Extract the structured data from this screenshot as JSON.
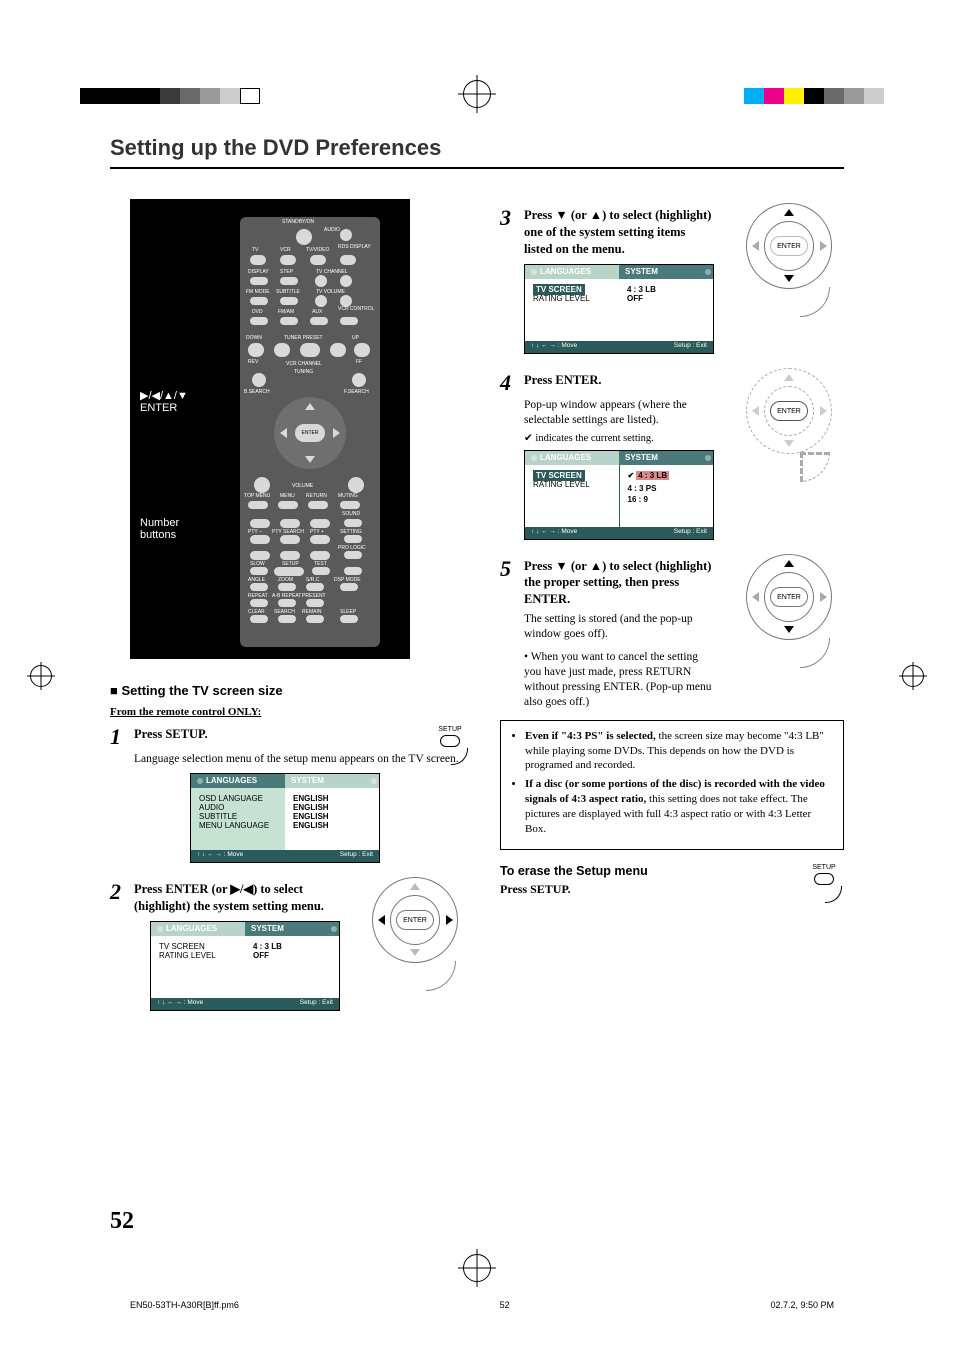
{
  "reg_colors_left": [
    "#000000",
    "#000000",
    "#000000",
    "#000000",
    "#3a3a3a",
    "#6a6a6a",
    "#9a9a9a",
    "#cccccc",
    "#ffffff"
  ],
  "reg_colors_right": [
    "#00aeef",
    "#ec008c",
    "#fff200",
    "#000000",
    "#6a6a6a",
    "#9a9a9a",
    "#cccccc"
  ],
  "title": "Setting up the DVD Preferences",
  "callouts": {
    "nav": "▶/◀/▲/▼",
    "enter": "ENTER",
    "number": "Number\nbuttons",
    "return": "RETURN",
    "setup": "SETUP"
  },
  "remote": {
    "top_label": "STANDBY/ON",
    "audio": "AUDIO",
    "row2": [
      "TV",
      "VCR",
      "TV/VIDEO",
      "RDS\nDISPLAY"
    ],
    "row3": [
      "DISPLAY",
      "STEP",
      "TV CHANNEL"
    ],
    "row4": [
      "FM MODE",
      "SUBTITLE",
      "TV VOLUME"
    ],
    "row5": [
      "DVD",
      "FM/AM",
      "AUX",
      "VCR\nCONTROL"
    ],
    "transport": {
      "down": "DOWN",
      "tuner": "TUNER PRESET",
      "up": "UP",
      "rev": "REV",
      "ff": "FF",
      "vcr": "VCR CHANNEL",
      "tuning": "TUNING",
      "bsearch": "B.SEARCH",
      "fsearch": "F.SEARCH"
    },
    "enter": "ENTER",
    "volume": "VOLUME",
    "menu_row": [
      "TOP MENU",
      "MENU",
      "RETURN",
      "MUTING"
    ],
    "num_side": [
      "SOUND",
      "SETTING",
      "PRO LOGIC"
    ],
    "pty": [
      "PTY –",
      "PTY SEARCH",
      "PTY +"
    ],
    "row_setup": [
      "SLOW",
      "SETUP",
      "TEST"
    ],
    "row_angle": [
      "ANGLE",
      "ZOOM",
      "S/R.C",
      "DSP MODE"
    ],
    "row_repeat": [
      "REPEAT",
      "A-B REPEAT",
      "PRESENT"
    ],
    "row_clear": [
      "CLEAR",
      "SEARCH",
      "REMAIN",
      "SLEEP"
    ]
  },
  "section_tv": "■ Setting the TV screen size",
  "from_remote": "From the remote control ONLY:",
  "step1": {
    "num": "1",
    "head": "Press SETUP.",
    "body": "Language selection menu of the setup menu appears on the TV screen.",
    "setup_lbl": "SETUP"
  },
  "osd1": {
    "tab_l": "LANGUAGES",
    "tab_r": "SYSTEM",
    "rows": [
      [
        "OSD LANGUAGE",
        "ENGLISH"
      ],
      [
        "AUDIO",
        "ENGLISH"
      ],
      [
        "SUBTITLE",
        "ENGLISH"
      ],
      [
        "MENU LANGUAGE",
        "ENGLISH"
      ]
    ],
    "foot_l": "↑ ↓ ← → : Move",
    "foot_r": "Setup : Exit",
    "tab_active": "lang"
  },
  "step2": {
    "num": "2",
    "head": "Press ENTER (or ▶/◀) to select (highlight) the system setting menu."
  },
  "osd2": {
    "tab_l": "LANGUAGES",
    "tab_r": "SYSTEM",
    "rows": [
      [
        "TV SCREEN",
        "4 : 3 LB"
      ],
      [
        "RATING LEVEL",
        "OFF"
      ]
    ],
    "foot_l": "↑ ↓ ← → : Move",
    "foot_r": "Setup : Exit",
    "tab_active": "sys"
  },
  "step3": {
    "num": "3",
    "head": "Press ▼ (or ▲) to select (highlight) one of the system setting items listed on the menu."
  },
  "osd3": {
    "tab_l": "LANGUAGES",
    "tab_r": "SYSTEM",
    "rows": [
      [
        "TV SCREEN",
        "4 : 3 LB"
      ],
      [
        "RATING LEVEL",
        "OFF"
      ]
    ],
    "sel_row": 0,
    "foot_l": "↑ ↓ ← → : Move",
    "foot_r": "Setup : Exit",
    "tab_active": "sys"
  },
  "step4": {
    "num": "4",
    "head": "Press ENTER.",
    "body": "Pop-up window appears (where the selectable settings are listed).",
    "check_note": "✔ indicates the current setting."
  },
  "osd4": {
    "tab_l": "LANGUAGES",
    "tab_r": "SYSTEM",
    "left": [
      [
        "TV SCREEN",
        true
      ],
      [
        "RATING LEVEL",
        false
      ]
    ],
    "right_opts": [
      "4 : 3 LB",
      "4 : 3 PS",
      "16 : 9"
    ],
    "checked": 0,
    "foot_l": "↑ ↓ ← → : Move",
    "foot_r": "Setup : Exit"
  },
  "step5": {
    "num": "5",
    "head": "Press ▼ (or ▲) to select (highlight) the proper setting, then press ENTER.",
    "body": "The setting is stored (and the pop-up window goes off).",
    "bullet": "• When you want to cancel the setting you have just made, press RETURN without pressing ENTER. (Pop-up menu also goes off.)"
  },
  "notebox": {
    "li1a": "Even if \"4:3 PS\" is selected,",
    "li1b": " the screen size may become \"4:3 LB\" while playing some DVDs. This depends on how the DVD is programed and recorded.",
    "li2a": "If a disc (or some portions of the disc) is recorded with the video signals of 4:3 aspect ratio,",
    "li2b": " this setting does not take effect. The pictures are displayed with full 4:3 aspect ratio or with 4:3 Letter Box."
  },
  "erase": {
    "h": "To erase the Setup menu",
    "b": "Press SETUP.",
    "setup_lbl": "SETUP"
  },
  "pad_enter": "ENTER",
  "page_number": "52",
  "footer": {
    "file": "EN50-53TH-A30R[B]ff.pm6",
    "page": "52",
    "ts": "02.7.2, 9:50 PM"
  }
}
